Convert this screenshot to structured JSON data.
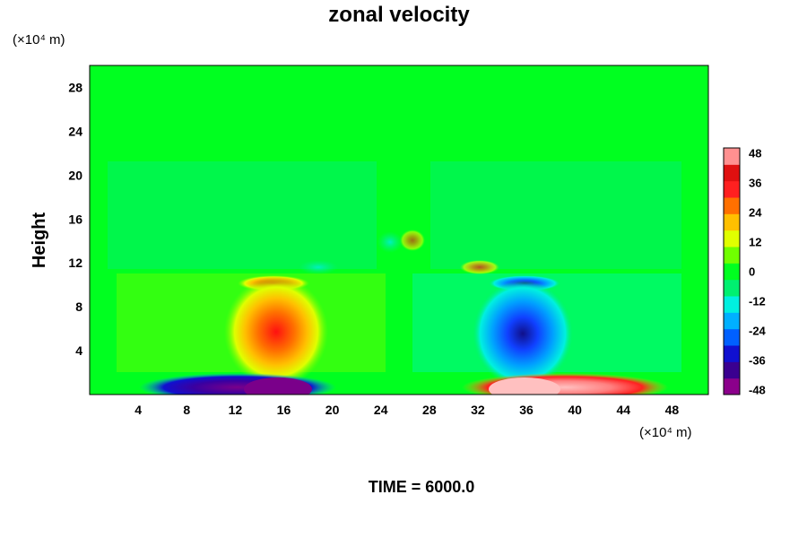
{
  "chart_data": {
    "type": "heatmap",
    "title": "zonal velocity",
    "ylabel": "Height",
    "y_unit": "(×10⁴ m)",
    "x_unit": "(×10⁴ m)",
    "footer": "TIME = 6000.0",
    "x_ticks": [
      4,
      8,
      12,
      16,
      20,
      24,
      28,
      32,
      36,
      40,
      44,
      48
    ],
    "y_ticks": [
      4,
      8,
      12,
      16,
      20,
      24,
      28
    ],
    "xlim": [
      0,
      51
    ],
    "ylim": [
      0,
      30
    ],
    "colorbar": {
      "ticks": [
        48,
        36,
        24,
        12,
        0,
        -12,
        -24,
        -36,
        -48
      ],
      "range": [
        -50,
        50
      ],
      "colors": [
        "#8b008b",
        "#3a0090",
        "#1010d0",
        "#0060ff",
        "#00b0ff",
        "#00f0e0",
        "#00f070",
        "#00ff20",
        "#70ff00",
        "#e0ff00",
        "#ffc000",
        "#ff7000",
        "#ff2020",
        "#e01010",
        "#ff9090"
      ]
    },
    "features": [
      {
        "x": 15,
        "y": 4,
        "value": 40
      },
      {
        "x": 35,
        "y": 4,
        "value": -40
      },
      {
        "x": 15,
        "y": 0.5,
        "value": -50
      },
      {
        "x": 35,
        "y": 0.5,
        "value": 50
      }
    ]
  }
}
